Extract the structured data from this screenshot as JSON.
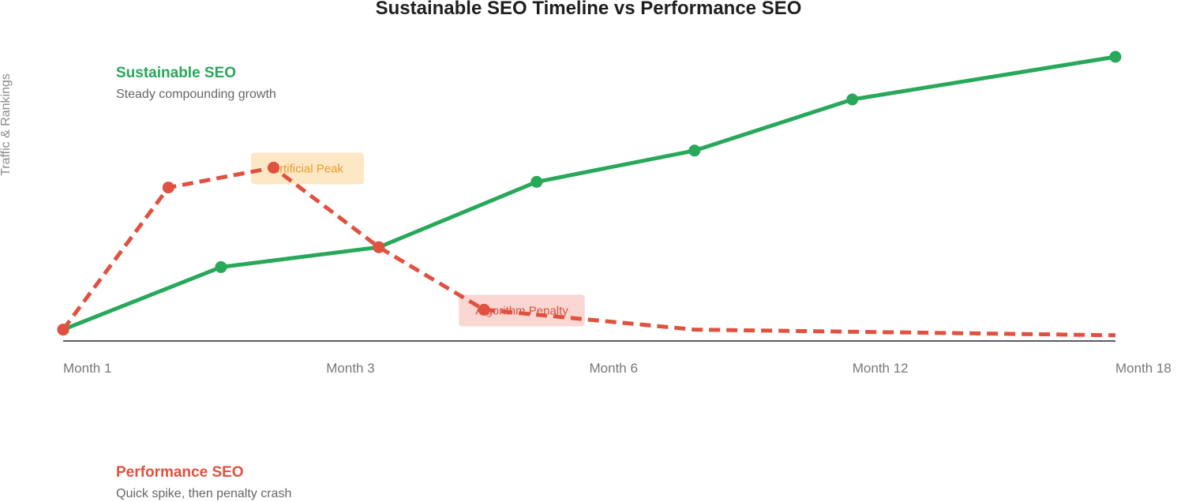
{
  "colors": {
    "sustainable": "#27a85a",
    "performance": "#e0513f",
    "axis": "#5b5b66",
    "tick_text": "#777777",
    "peak_fill": "#fde8c6",
    "peak_text": "#e89a2b",
    "penalty_fill": "#fad7d2",
    "penalty_text": "#d9503e"
  },
  "chart_data": {
    "type": "line",
    "title": "Sustainable SEO Timeline vs Performance SEO",
    "xlabel": "",
    "ylabel": "Traffic & Rankings",
    "xlim": [
      0,
      6
    ],
    "ylim": [
      0,
      100
    ],
    "grid": false,
    "x_ticks": [
      {
        "x": 0,
        "label": "Month 1"
      },
      {
        "x": 1.5,
        "label": "Month 3"
      },
      {
        "x": 3,
        "label": "Month 6"
      },
      {
        "x": 4.5,
        "label": "Month 12"
      },
      {
        "x": 6,
        "label": "Month 18"
      }
    ],
    "series": [
      {
        "name": "Sustainable SEO",
        "description": "Steady compounding growth",
        "color": "#27a85a",
        "dashed": false,
        "points": [
          {
            "x": 0,
            "y": 4
          },
          {
            "x": 0.9,
            "y": 26
          },
          {
            "x": 1.8,
            "y": 33
          },
          {
            "x": 2.7,
            "y": 56
          },
          {
            "x": 3.6,
            "y": 67
          },
          {
            "x": 4.5,
            "y": 85
          },
          {
            "x": 6,
            "y": 100
          }
        ]
      },
      {
        "name": "Performance SEO",
        "description": "Quick spike, then penalty crash",
        "color": "#e0513f",
        "dashed": true,
        "points": [
          {
            "x": 0,
            "y": 4
          },
          {
            "x": 0.6,
            "y": 54
          },
          {
            "x": 1.2,
            "y": 61
          },
          {
            "x": 1.8,
            "y": 33
          },
          {
            "x": 2.4,
            "y": 11
          },
          {
            "x": 3.6,
            "y": 4
          },
          {
            "x": 6,
            "y": 2
          }
        ],
        "marker_count": 5
      }
    ],
    "annotations": [
      {
        "text": "Artificial Peak",
        "x": 1.2,
        "y": 61,
        "style": "peak"
      },
      {
        "text": "Algorithm Penalty",
        "x": 2.4,
        "y": 11,
        "style": "penalty"
      }
    ]
  }
}
